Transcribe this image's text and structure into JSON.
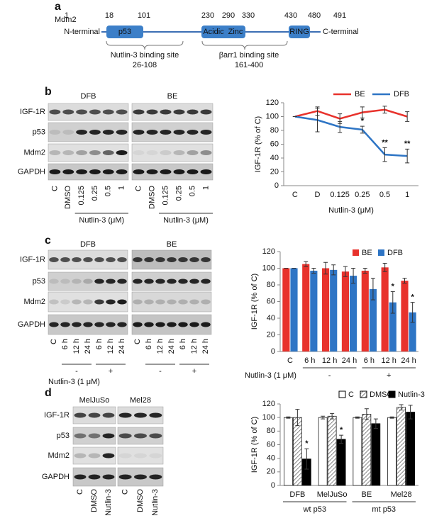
{
  "panel_a": {
    "label": "a",
    "protein": "Mdm2",
    "n_label": "N-terminal",
    "c_label": "C-terminal",
    "positions": [
      "1",
      "18",
      "101",
      "230",
      "290",
      "330",
      "430",
      "480",
      "491"
    ],
    "domains": [
      "p53",
      "Acidic",
      "Zinc",
      "RING"
    ],
    "sites": [
      {
        "name": "Nutlin-3 binding site",
        "range": "26-108"
      },
      {
        "name": "βarr1 binding site",
        "range": "161-400"
      }
    ]
  },
  "panel_b": {
    "label": "b",
    "headers": [
      "DFB",
      "BE"
    ],
    "rows": [
      "IGF-1R",
      "p53",
      "Mdm2",
      "GAPDH"
    ],
    "lanes": [
      "C",
      "DMSO",
      "0.125",
      "0.25",
      "0.5",
      "1"
    ],
    "treatment": "Nutlin-3 (μM)"
  },
  "panel_c": {
    "label": "c",
    "headers": [
      "DFB",
      "BE"
    ],
    "rows": [
      "IGF-1R",
      "p53",
      "Mdm2",
      "GAPDH"
    ],
    "lanes": [
      "C",
      "6 h",
      "12 h",
      "24 h",
      "6 h",
      "12 h",
      "24 h"
    ],
    "treatment": "Nutlin-3 (1 μM)",
    "lane_groups": [
      null,
      "-",
      "-",
      "-",
      "+",
      "+",
      "+"
    ]
  },
  "panel_d": {
    "label": "d",
    "headers": [
      "MelJuSo",
      "Mel28"
    ],
    "rows": [
      "IGF-1R",
      "p53",
      "Mdm2",
      "GAPDH"
    ],
    "lanes": [
      "C",
      "DMSO",
      "Nutlin-3"
    ]
  },
  "chart_data": [
    {
      "type": "line",
      "ylabel": "IGF-1R (% of C)",
      "xlabel": "Nutlin-3 (μM)",
      "legend": "top",
      "categories": [
        "C",
        "D",
        "0.125",
        "0.25",
        "0.5",
        "1"
      ],
      "ylim": [
        0,
        120
      ],
      "yticks": [
        0,
        20,
        40,
        60,
        80,
        100,
        120
      ],
      "series": [
        {
          "name": "BE",
          "color": "#e8322c",
          "values": [
            100,
            108,
            97,
            106,
            110,
            100
          ],
          "errors": [
            0,
            6,
            7,
            8,
            5,
            7
          ],
          "significance": [
            null,
            null,
            null,
            null,
            null,
            null
          ]
        },
        {
          "name": "DFB",
          "color": "#2e75c5",
          "values": [
            100,
            95,
            85,
            81,
            45,
            43
          ],
          "errors": [
            0,
            17,
            8,
            5,
            10,
            10
          ],
          "significance": [
            null,
            null,
            null,
            "*",
            "**",
            "**"
          ]
        }
      ]
    },
    {
      "type": "bar",
      "ylabel": "IGF-1R (% of C)",
      "legend": "top",
      "group_title": "Nutlin-3 (1 μM)",
      "categories": [
        "C",
        "6 h",
        "12 h",
        "24 h",
        "6 h",
        "12 h",
        "24 h"
      ],
      "category_groups": [
        null,
        "-",
        "-",
        "-",
        "+",
        "+",
        "+"
      ],
      "ylim": [
        0,
        120
      ],
      "yticks": [
        0,
        20,
        40,
        60,
        80,
        100,
        120
      ],
      "series": [
        {
          "name": "BE",
          "color": "#e8322c",
          "values": [
            100,
            105,
            100,
            96,
            97,
            101,
            85
          ],
          "errors": [
            0,
            3,
            7,
            6,
            3,
            5,
            3
          ],
          "significance": [
            null,
            null,
            null,
            null,
            null,
            null,
            null
          ]
        },
        {
          "name": "DFB",
          "color": "#2e75c5",
          "values": [
            100,
            97,
            98,
            91,
            75,
            59,
            47
          ],
          "errors": [
            0,
            3,
            6,
            9,
            13,
            13,
            12
          ],
          "significance": [
            null,
            null,
            null,
            null,
            null,
            "*",
            "*"
          ]
        }
      ]
    },
    {
      "type": "bar",
      "ylabel": "IGF-1R (% of C)",
      "legend": "top",
      "edgecolor": "#000000",
      "categories": [
        "DFB",
        "MelJuSo",
        "BE",
        "Mel28"
      ],
      "category_groups": [
        "wt p53",
        "wt p53",
        "mt p53",
        "mt p53"
      ],
      "ylim": [
        0,
        120
      ],
      "yticks": [
        0,
        20,
        40,
        60,
        80,
        100,
        120
      ],
      "series": [
        {
          "name": "C",
          "color": "#ffffff",
          "values": [
            100,
            100,
            100,
            100
          ],
          "errors": [
            1,
            2,
            1,
            1
          ],
          "significance": [
            null,
            null,
            null,
            null
          ]
        },
        {
          "name": "DMSO",
          "color": "#ffffff",
          "pattern": "hatch",
          "values": [
            100,
            102,
            105,
            115
          ],
          "errors": [
            12,
            4,
            8,
            4
          ],
          "significance": [
            null,
            null,
            null,
            null
          ]
        },
        {
          "name": "Nutlin-3",
          "color": "#000000",
          "values": [
            39,
            68,
            91,
            108
          ],
          "errors": [
            15,
            6,
            7,
            10
          ],
          "significance": [
            "*",
            "*",
            null,
            null
          ]
        }
      ]
    }
  ]
}
